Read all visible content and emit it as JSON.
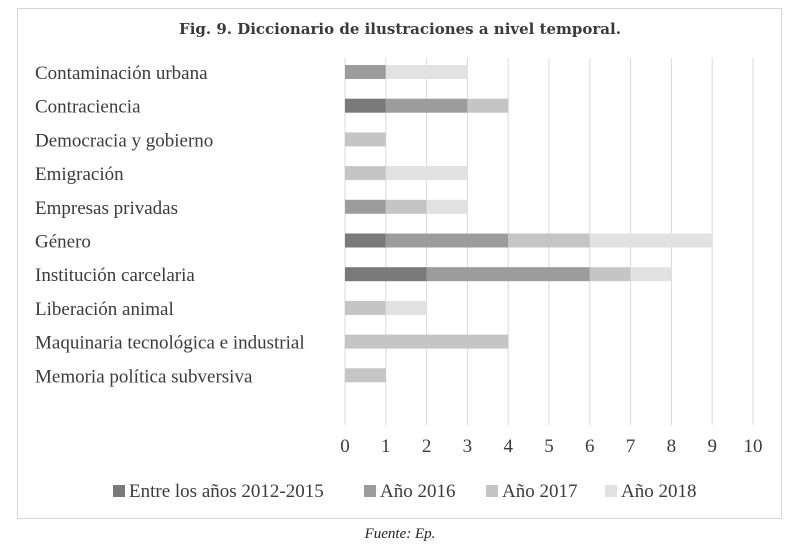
{
  "chart_data": {
    "type": "bar",
    "orientation": "horizontal",
    "stacked": true,
    "title": "Fig. 9. Diccionario de ilustraciones a nivel temporal.",
    "categories": [
      "Contaminación urbana",
      "Contraciencia",
      "Democracia y gobierno",
      "Emigración",
      "Empresas privadas",
      "Género",
      "Institución carcelaria",
      "Liberación animal",
      "Maquinaria tecnológica e industrial",
      "Memoria política subversiva"
    ],
    "series": [
      {
        "name": "Entre los años 2012-2015",
        "color": "#7a7a7a",
        "values": [
          0,
          1,
          0,
          0,
          0,
          1,
          2,
          0,
          0,
          0
        ]
      },
      {
        "name": "Año 2016",
        "color": "#9c9c9c",
        "values": [
          1,
          2,
          0,
          0,
          1,
          3,
          4,
          0,
          0,
          0
        ]
      },
      {
        "name": "Año 2017",
        "color": "#c5c5c5",
        "values": [
          0,
          1,
          1,
          1,
          1,
          2,
          1,
          1,
          4,
          1
        ]
      },
      {
        "name": "Año 2018",
        "color": "#e2e2e2",
        "values": [
          2,
          0,
          0,
          2,
          1,
          3,
          1,
          1,
          0,
          0
        ]
      }
    ],
    "xlim": [
      0,
      10
    ],
    "xticks": [
      0,
      1,
      2,
      3,
      4,
      5,
      6,
      7,
      8,
      9,
      10
    ],
    "grid": true,
    "legend_position": "bottom"
  },
  "caption": "Fuente: Ep."
}
